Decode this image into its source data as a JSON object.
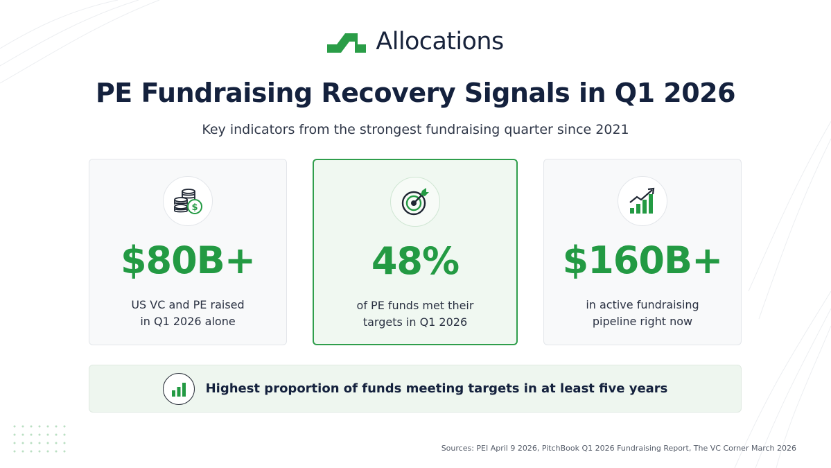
{
  "brand": {
    "name": "Allocations",
    "logo_icon": "allocations-step-logo",
    "accent_color": "#239a43",
    "text_color": "#14213d"
  },
  "header": {
    "title": "PE Fundraising Recovery Signals in Q1 2026",
    "subtitle": "Key indicators from the strongest fundraising quarter since 2021"
  },
  "stats": [
    {
      "icon": "coins-dollar-icon",
      "value": "$80B+",
      "desc_line1": "US VC and PE raised",
      "desc_line2": "in Q1 2026 alone",
      "highlighted": false
    },
    {
      "icon": "target-arrow-icon",
      "value": "48%",
      "desc_line1": "of PE funds met their",
      "desc_line2": "targets in Q1 2026",
      "highlighted": true
    },
    {
      "icon": "growth-chart-icon",
      "value": "$160B+",
      "desc_line1": "in active fundraising",
      "desc_line2": "pipeline right now",
      "highlighted": false
    }
  ],
  "banner": {
    "icon": "bar-chart-icon",
    "text": "Highest proportion of funds meeting targets in at least five years"
  },
  "footer": {
    "sources": "Sources: PEI April 9 2026, PitchBook Q1 2026 Fundraising Report, The VC Corner March 2026"
  }
}
